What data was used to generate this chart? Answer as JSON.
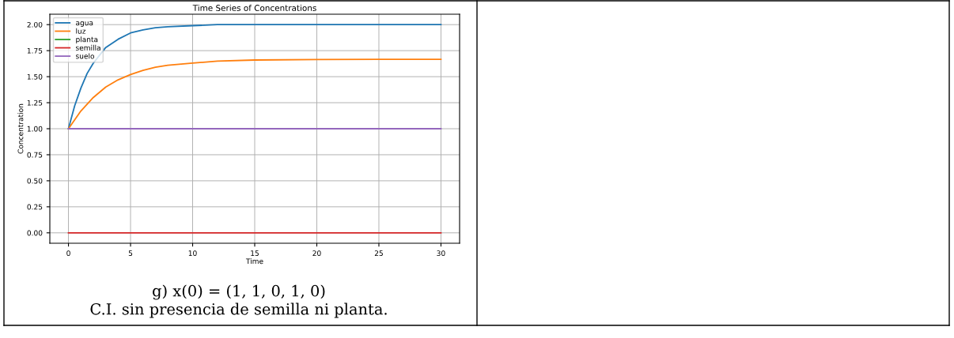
{
  "chart_data": {
    "type": "line",
    "title": "Time Series of Concentrations",
    "xlabel": "Time",
    "ylabel": "Concentration",
    "xlim": [
      -1.5,
      31.5
    ],
    "xticks": [
      0,
      5,
      10,
      15,
      20,
      25,
      30
    ],
    "ylim": [
      -0.1,
      2.1
    ],
    "yticks": [
      {
        "value": 0,
        "label": "0.00"
      },
      {
        "value": 0.25,
        "label": "0.25"
      },
      {
        "value": 0.5,
        "label": "0.50"
      },
      {
        "value": 0.75,
        "label": "0.75"
      },
      {
        "value": 1,
        "label": "1.00"
      },
      {
        "value": 1.25,
        "label": "1.25"
      },
      {
        "value": 1.5,
        "label": "1.50"
      },
      {
        "value": 1.75,
        "label": "1.75"
      },
      {
        "value": 2,
        "label": "2.00"
      }
    ],
    "grid": true,
    "legend": "top left",
    "marker": "none",
    "line_style": "solid",
    "series": [
      {
        "name": "agua",
        "color": "#1f77b4",
        "x": [
          0,
          0.5,
          1,
          1.5,
          2,
          3,
          4,
          5,
          6,
          7,
          8,
          10,
          12,
          15,
          20,
          25,
          30
        ],
        "values": [
          1,
          1.22,
          1.39,
          1.53,
          1.63,
          1.78,
          1.86,
          1.92,
          1.95,
          1.97,
          1.98,
          1.99,
          2.0,
          2.0,
          2.0,
          2.0,
          2.0
        ]
      },
      {
        "name": "luz",
        "color": "#ff7f0e",
        "x": [
          0,
          1,
          2,
          3,
          4,
          5,
          6,
          7,
          8,
          10,
          12,
          15,
          20,
          25,
          30
        ],
        "values": [
          1,
          1.17,
          1.3,
          1.4,
          1.47,
          1.52,
          1.56,
          1.59,
          1.61,
          1.63,
          1.65,
          1.66,
          1.665,
          1.667,
          1.667
        ]
      },
      {
        "name": "planta",
        "color": "#2ca02c"
      },
      {
        "name": "semilla",
        "color": "#d62728",
        "x": [
          0,
          30
        ],
        "values": [
          0,
          0
        ]
      },
      {
        "name": "suelo",
        "color": "#9467bd",
        "x": [
          0,
          30
        ],
        "values": [
          1,
          1
        ]
      }
    ],
    "annotations": [
      "g) x(0) = (1, 1, 0, 1, 0)",
      "C.I. sin presencia de semilla ni planta."
    ]
  }
}
